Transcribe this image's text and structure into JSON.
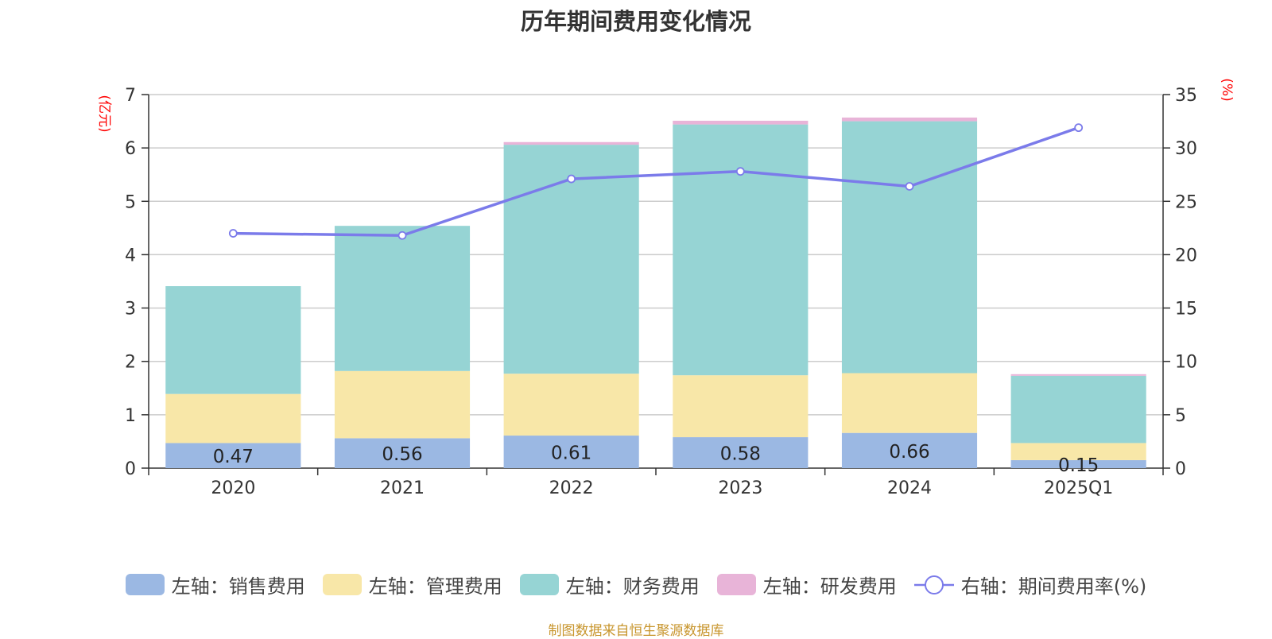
{
  "title": "历年期间费用变化情况",
  "footer": "制图数据来自恒生聚源数据库",
  "chart_data": {
    "type": "bar",
    "stacked": true,
    "categories": [
      "2020",
      "2021",
      "2022",
      "2023",
      "2024",
      "2025Q1"
    ],
    "left_axis": {
      "unit_label": "(亿元)",
      "ylim": [
        0,
        7
      ],
      "ticks": [
        "0",
        "1",
        "2",
        "3",
        "4",
        "5",
        "6",
        "7"
      ]
    },
    "right_axis": {
      "unit_label": "(%)",
      "ylim": [
        0,
        35
      ],
      "ticks": [
        "0",
        "5",
        "10",
        "15",
        "20",
        "25",
        "30",
        "35"
      ]
    },
    "grid": true,
    "legend_position": "bottom",
    "series": [
      {
        "name": "左轴：销售费用",
        "axis": "left",
        "color": "#9bb8e3",
        "values": [
          0.47,
          0.56,
          0.61,
          0.58,
          0.66,
          0.15
        ],
        "labels": [
          "0.47",
          "0.56",
          "0.61",
          "0.58",
          "0.66",
          "0.15"
        ]
      },
      {
        "name": "左轴：管理费用",
        "axis": "left",
        "color": "#f8e7a8",
        "values": [
          0.92,
          1.26,
          1.16,
          1.16,
          1.12,
          0.32
        ]
      },
      {
        "name": "左轴：财务费用",
        "axis": "left",
        "color": "#96d4d4",
        "values": [
          2.02,
          2.72,
          4.29,
          4.7,
          4.72,
          1.26
        ]
      },
      {
        "name": "左轴：研发费用",
        "axis": "left",
        "color": "#e8b4d8",
        "values": [
          0,
          0,
          0.05,
          0.07,
          0.07,
          0.03
        ]
      }
    ],
    "line_series": {
      "name": "右轴：期间费用率(%)",
      "axis": "right",
      "color": "#7b7bea",
      "values": [
        22.0,
        21.8,
        27.1,
        27.8,
        26.4,
        31.9
      ]
    }
  }
}
